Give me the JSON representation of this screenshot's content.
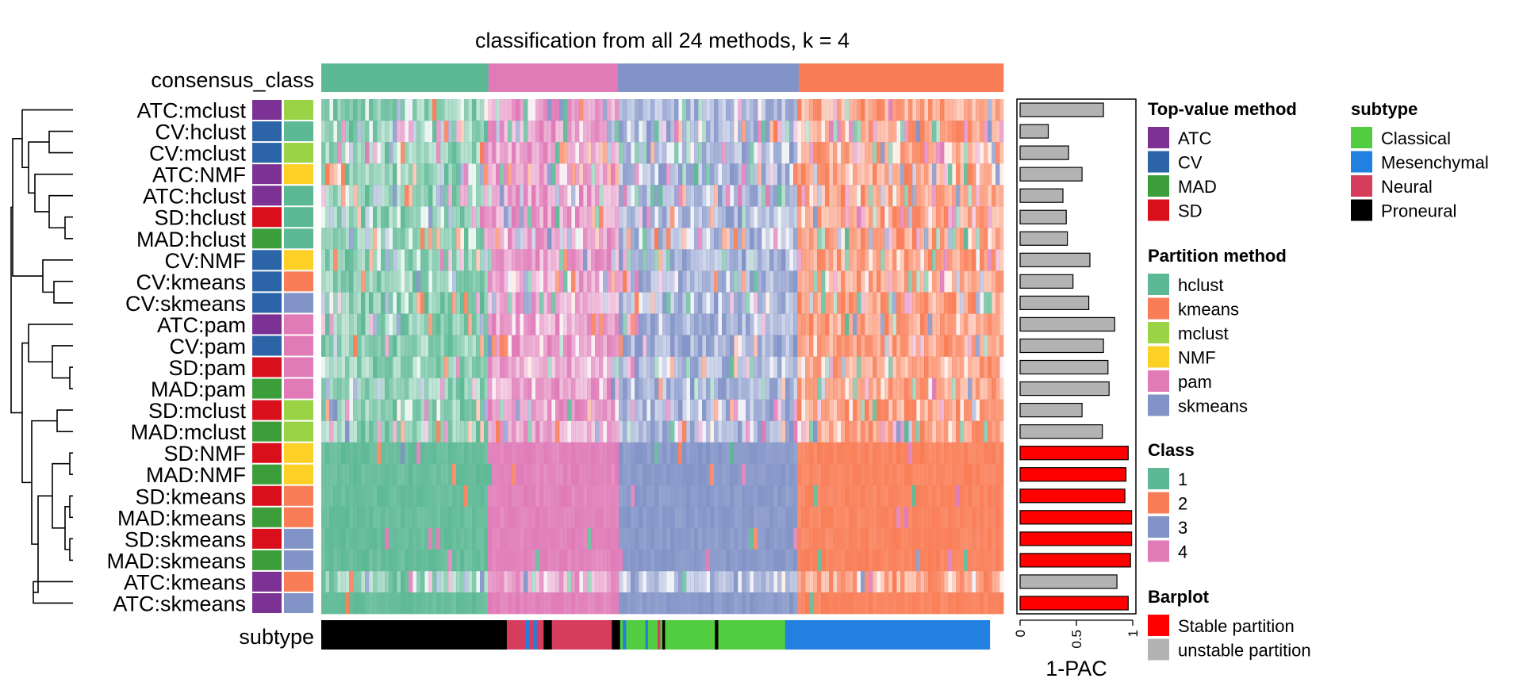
{
  "chart_data": {
    "type": "heatmap",
    "title": "classification from all 24 methods, k = 4",
    "consensus_label": "consensus_class",
    "subtype_label": "subtype",
    "rows": [
      {
        "label": "ATC:mclust",
        "top_value": "ATC",
        "partition": "mclust",
        "pac": 0.74,
        "stable": false
      },
      {
        "label": "CV:hclust",
        "top_value": "CV",
        "partition": "hclust",
        "pac": 0.25,
        "stable": false
      },
      {
        "label": "CV:mclust",
        "top_value": "CV",
        "partition": "mclust",
        "pac": 0.43,
        "stable": false
      },
      {
        "label": "ATC:NMF",
        "top_value": "ATC",
        "partition": "NMF",
        "pac": 0.55,
        "stable": false
      },
      {
        "label": "ATC:hclust",
        "top_value": "ATC",
        "partition": "hclust",
        "pac": 0.38,
        "stable": false
      },
      {
        "label": "SD:hclust",
        "top_value": "SD",
        "partition": "hclust",
        "pac": 0.41,
        "stable": false
      },
      {
        "label": "MAD:hclust",
        "top_value": "MAD",
        "partition": "hclust",
        "pac": 0.42,
        "stable": false
      },
      {
        "label": "CV:NMF",
        "top_value": "CV",
        "partition": "NMF",
        "pac": 0.62,
        "stable": false
      },
      {
        "label": "CV:kmeans",
        "top_value": "CV",
        "partition": "kmeans",
        "pac": 0.47,
        "stable": false
      },
      {
        "label": "CV:skmeans",
        "top_value": "CV",
        "partition": "skmeans",
        "pac": 0.61,
        "stable": false
      },
      {
        "label": "ATC:pam",
        "top_value": "ATC",
        "partition": "pam",
        "pac": 0.84,
        "stable": false
      },
      {
        "label": "CV:pam",
        "top_value": "CV",
        "partition": "pam",
        "pac": 0.74,
        "stable": false
      },
      {
        "label": "SD:pam",
        "top_value": "SD",
        "partition": "pam",
        "pac": 0.78,
        "stable": false
      },
      {
        "label": "MAD:pam",
        "top_value": "MAD",
        "partition": "pam",
        "pac": 0.79,
        "stable": false
      },
      {
        "label": "SD:mclust",
        "top_value": "SD",
        "partition": "mclust",
        "pac": 0.55,
        "stable": false
      },
      {
        "label": "MAD:mclust",
        "top_value": "MAD",
        "partition": "mclust",
        "pac": 0.73,
        "stable": false
      },
      {
        "label": "SD:NMF",
        "top_value": "SD",
        "partition": "NMF",
        "pac": 0.96,
        "stable": true
      },
      {
        "label": "MAD:NMF",
        "top_value": "MAD",
        "partition": "NMF",
        "pac": 0.94,
        "stable": true
      },
      {
        "label": "SD:kmeans",
        "top_value": "SD",
        "partition": "kmeans",
        "pac": 0.93,
        "stable": true
      },
      {
        "label": "MAD:kmeans",
        "top_value": "MAD",
        "partition": "kmeans",
        "pac": 0.99,
        "stable": true
      },
      {
        "label": "SD:skmeans",
        "top_value": "SD",
        "partition": "skmeans",
        "pac": 0.99,
        "stable": true
      },
      {
        "label": "MAD:skmeans",
        "top_value": "MAD",
        "partition": "skmeans",
        "pac": 0.98,
        "stable": true
      },
      {
        "label": "ATC:kmeans",
        "top_value": "ATC",
        "partition": "kmeans",
        "pac": 0.86,
        "stable": false
      },
      {
        "label": "ATC:skmeans",
        "top_value": "ATC",
        "partition": "skmeans",
        "pac": 0.96,
        "stable": true
      }
    ],
    "consensus_segments": [
      {
        "class": "1",
        "fraction": 0.245
      },
      {
        "class": "4",
        "fraction": 0.19
      },
      {
        "class": "3",
        "fraction": 0.265
      },
      {
        "class": "2",
        "fraction": 0.3
      }
    ],
    "subtype_segments": [
      {
        "subtype": "Proneural",
        "fraction": 0.272
      },
      {
        "subtype": "Neural",
        "fraction": 0.028
      },
      {
        "subtype": "Mesenchymal",
        "fraction": 0.005
      },
      {
        "subtype": "Neural",
        "fraction": 0.006
      },
      {
        "subtype": "Mesenchymal",
        "fraction": 0.005
      },
      {
        "subtype": "Neural",
        "fraction": 0.01
      },
      {
        "subtype": "Proneural",
        "fraction": 0.012
      },
      {
        "subtype": "Neural",
        "fraction": 0.088
      },
      {
        "subtype": "Proneural",
        "fraction": 0.012
      },
      {
        "subtype": "Classical",
        "fraction": 0.004
      },
      {
        "subtype": "Mesenchymal",
        "fraction": 0.005
      },
      {
        "subtype": "Classical",
        "fraction": 0.028
      },
      {
        "subtype": "Mesenchymal",
        "fraction": 0.004
      },
      {
        "subtype": "Classical",
        "fraction": 0.014
      },
      {
        "subtype": "Neural",
        "fraction": 0.004
      },
      {
        "subtype": "Classical",
        "fraction": 0.003
      },
      {
        "subtype": "Proneural",
        "fraction": 0.004
      },
      {
        "subtype": "Classical",
        "fraction": 0.073
      },
      {
        "subtype": "Proneural",
        "fraction": 0.005
      },
      {
        "subtype": "Classical",
        "fraction": 0.098
      },
      {
        "subtype": "Mesenchymal",
        "fraction": 0.3
      }
    ],
    "bar_axis": {
      "label": "1-PAC",
      "ticks": [
        "0",
        "0.5",
        "1"
      ],
      "range": [
        0,
        1
      ]
    },
    "legends": [
      {
        "title": "Top-value method",
        "items": [
          {
            "label": "ATC",
            "color": "#7B3294"
          },
          {
            "label": "CV",
            "color": "#2B65A8"
          },
          {
            "label": "MAD",
            "color": "#3C9E3A"
          },
          {
            "label": "SD",
            "color": "#DA0F1C"
          }
        ]
      },
      {
        "title": "Partition method",
        "items": [
          {
            "label": "hclust",
            "color": "#5DB995"
          },
          {
            "label": "kmeans",
            "color": "#F97D56"
          },
          {
            "label": "mclust",
            "color": "#9AD345"
          },
          {
            "label": "NMF",
            "color": "#FDD027"
          },
          {
            "label": "pam",
            "color": "#E07BB8"
          },
          {
            "label": "skmeans",
            "color": "#8293C7"
          }
        ]
      },
      {
        "title": "Class",
        "items": [
          {
            "label": "1",
            "color": "#5DB995"
          },
          {
            "label": "2",
            "color": "#F97D56"
          },
          {
            "label": "3",
            "color": "#8293C7"
          },
          {
            "label": "4",
            "color": "#E07BB8"
          }
        ]
      },
      {
        "title": "Barplot",
        "items": [
          {
            "label": "Stable partition",
            "color": "#FF0000"
          },
          {
            "label": "unstable partition",
            "color": "#B3B3B3"
          }
        ]
      },
      {
        "title": "subtype",
        "items": [
          {
            "label": "Classical",
            "color": "#52CC40"
          },
          {
            "label": "Mesenchymal",
            "color": "#2180E0"
          },
          {
            "label": "Neural",
            "color": "#D63C5C"
          },
          {
            "label": "Proneural",
            "color": "#000000"
          }
        ]
      }
    ]
  }
}
